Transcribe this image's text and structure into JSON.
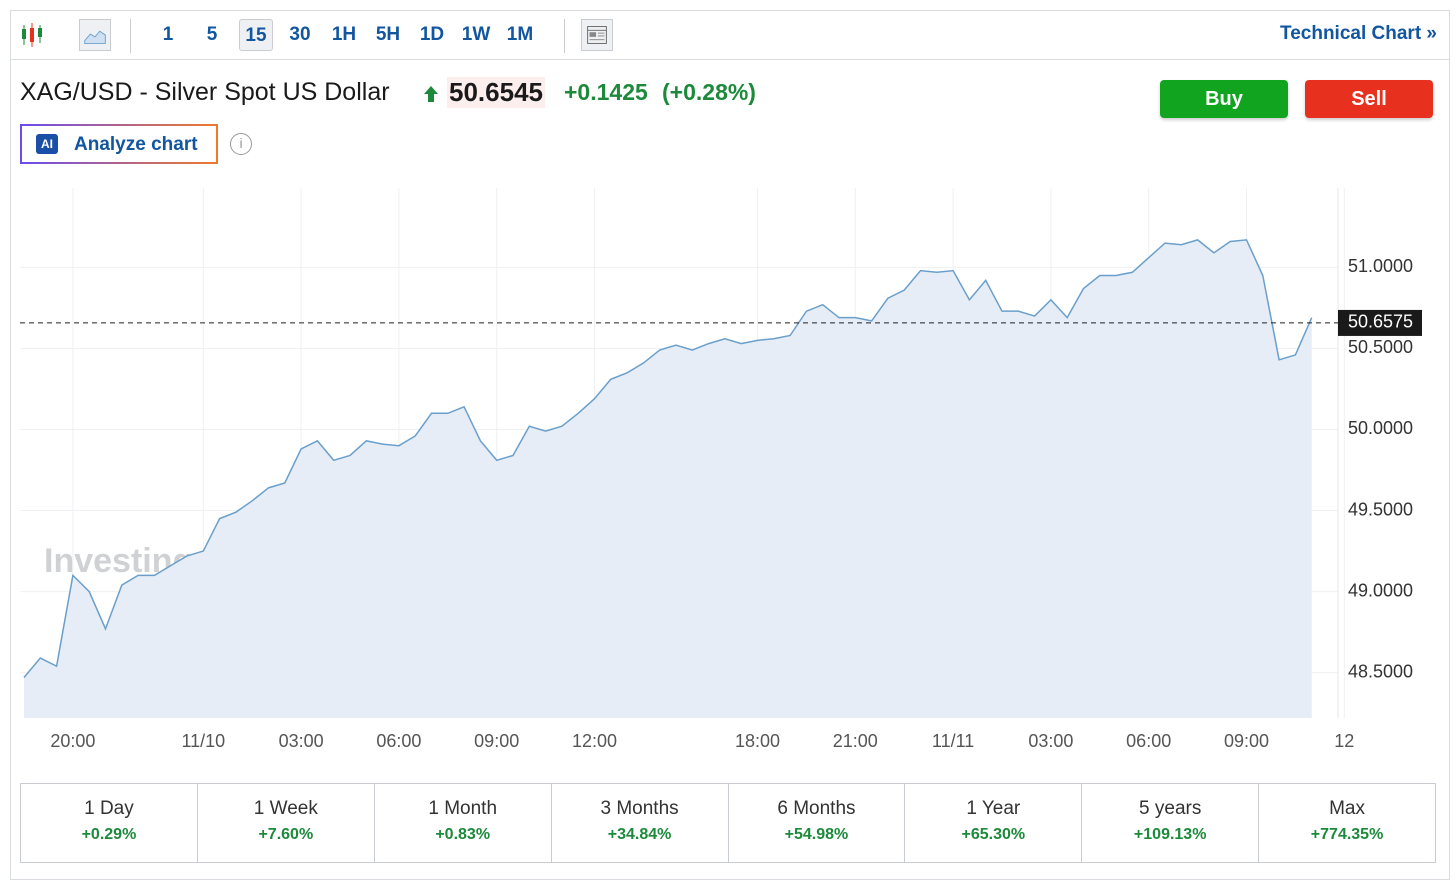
{
  "toolbar": {
    "intervals": [
      "1",
      "5",
      "15",
      "30",
      "1H",
      "5H",
      "1D",
      "1W",
      "1M"
    ],
    "technical_link": "Technical Chart »"
  },
  "header": {
    "symbol": "XAG/USD - Silver Spot US Dollar",
    "price": "50.6545",
    "change": "+0.1425",
    "change_pct": "(+0.28%)",
    "buy": "Buy",
    "sell": "Sell",
    "ai_badge": "AI",
    "analyze": "Analyze chart"
  },
  "chart_data": {
    "type": "area",
    "watermark": "Investing.com",
    "categories": [
      null,
      null,
      null,
      "20:00",
      null,
      null,
      null,
      null,
      null,
      null,
      null,
      "11/10",
      null,
      null,
      null,
      null,
      null,
      "03:00",
      null,
      null,
      null,
      null,
      null,
      "06:00",
      null,
      null,
      null,
      null,
      null,
      "09:00",
      null,
      null,
      null,
      null,
      null,
      "12:00",
      null,
      null,
      null,
      null,
      null,
      null,
      null,
      null,
      null,
      "18:00",
      null,
      null,
      null,
      null,
      null,
      "21:00",
      null,
      null,
      null,
      null,
      null,
      "11/11",
      null,
      null,
      null,
      null,
      null,
      "03:00",
      null,
      null,
      null,
      null,
      null,
      "06:00",
      null,
      null,
      null,
      null,
      null,
      "09:00",
      null,
      null,
      null,
      null,
      null,
      "12"
    ],
    "values": [
      48.47,
      48.59,
      48.54,
      49.1,
      49.0,
      48.77,
      49.04,
      49.1,
      49.1,
      49.16,
      49.22,
      49.25,
      49.45,
      49.49,
      49.56,
      49.64,
      49.67,
      49.88,
      49.93,
      49.81,
      49.84,
      49.93,
      49.91,
      49.9,
      49.96,
      50.1,
      50.1,
      50.14,
      49.93,
      49.81,
      49.84,
      50.02,
      49.99,
      50.02,
      50.1,
      50.19,
      50.31,
      50.35,
      50.41,
      50.49,
      50.52,
      50.49,
      50.53,
      50.56,
      50.53,
      50.55,
      50.56,
      50.58,
      50.73,
      50.77,
      50.69,
      50.69,
      50.67,
      50.81,
      50.86,
      50.98,
      50.97,
      50.98,
      50.8,
      50.92,
      50.73,
      50.73,
      50.7,
      50.8,
      50.69,
      50.87,
      50.95,
      50.95,
      50.97,
      51.06,
      51.15,
      51.14,
      51.17,
      51.09,
      51.16,
      51.17,
      50.95,
      50.43,
      50.46,
      50.69,
      null,
      null
    ],
    "color": "#6a9fcb",
    "ylim": [
      48.22,
      51.49
    ],
    "yticks": [
      {
        "value": 48.5,
        "label": "48.5000"
      },
      {
        "value": 49,
        "label": "49.0000"
      },
      {
        "value": 49.5,
        "label": "49.5000"
      },
      {
        "value": 50,
        "label": "50.0000"
      },
      {
        "value": 50.5,
        "label": "50.5000"
      },
      {
        "value": 51,
        "label": "51.0000"
      }
    ],
    "last_price": 50.6575,
    "grid": true
  },
  "performance": [
    {
      "period": "1 Day",
      "change": "+0.29%"
    },
    {
      "period": "1 Week",
      "change": "+7.60%"
    },
    {
      "period": "1 Month",
      "change": "+0.83%"
    },
    {
      "period": "3 Months",
      "change": "+34.84%"
    },
    {
      "period": "6 Months",
      "change": "+54.98%"
    },
    {
      "period": "1 Year",
      "change": "+65.30%"
    },
    {
      "period": "5 years",
      "change": "+109.13%"
    },
    {
      "period": "Max",
      "change": "+774.35%"
    }
  ]
}
